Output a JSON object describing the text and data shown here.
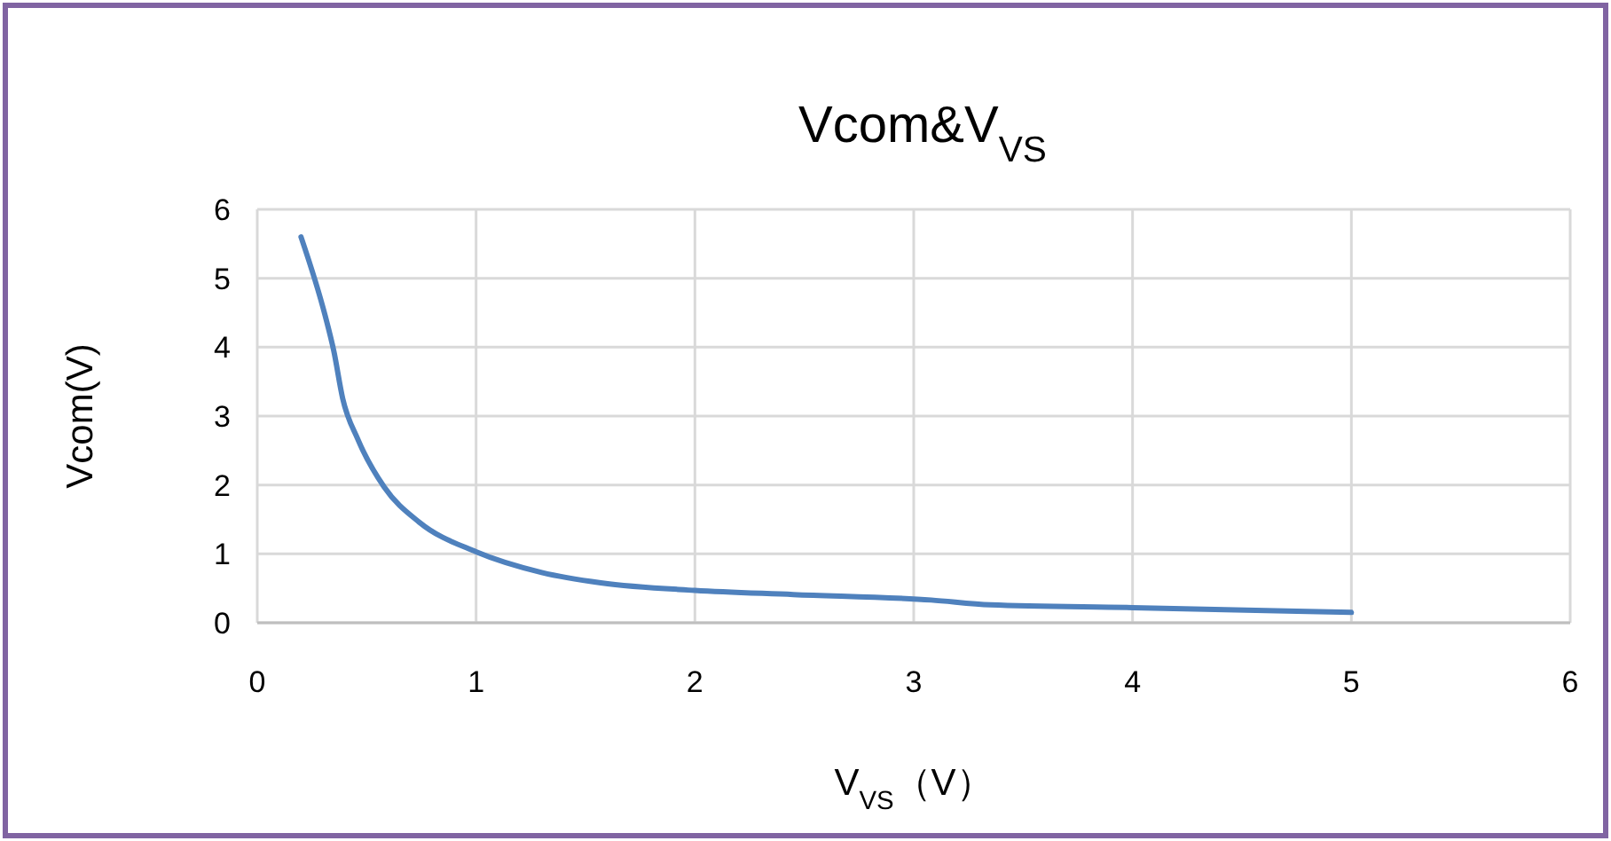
{
  "chart_data": {
    "type": "line",
    "title": "Vcom&V$_{VS}$",
    "xlabel": "V$_{VS}$（V）",
    "ylabel": "Vcom(V)",
    "x": [
      0.2,
      0.31,
      0.35,
      0.39,
      0.46,
      0.58,
      0.74,
      1.0,
      1.3,
      1.57,
      2.0,
      2.45,
      3.08,
      3.35,
      4.0,
      5.0
    ],
    "series": [
      {
        "color": "#4f81bd",
        "values": [
          5.6,
          4.46,
          3.94,
          3.26,
          2.66,
          1.97,
          1.46,
          1.03,
          0.73,
          0.58,
          0.47,
          0.41,
          0.33,
          0.26,
          0.22,
          0.15
        ]
      }
    ],
    "xlim": [
      0,
      6
    ],
    "ylim": [
      0,
      6
    ],
    "xticks": [
      0,
      1,
      2,
      3,
      4,
      5,
      6
    ],
    "yticks": [
      0,
      1,
      2,
      3,
      4,
      5,
      6
    ],
    "grid": true,
    "marker": "none",
    "line_style": "solid"
  }
}
